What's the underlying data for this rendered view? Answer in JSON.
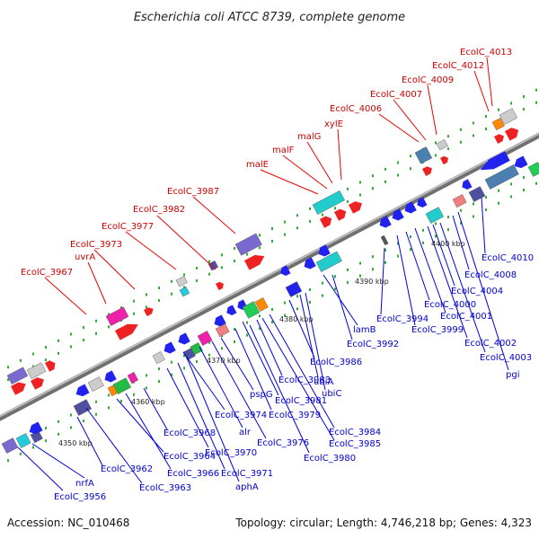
{
  "title": "Escherichia coli ATCC 8739, complete genome",
  "accession": "Accession: NC_010468",
  "summary": "Topology: circular; Length: 4,746,218 bp; Genes: 4,323",
  "colors": {
    "forward_label": "#cc0000",
    "reverse_label": "#0000cc",
    "backbone": "#888888",
    "dots": "#22aa22"
  },
  "ticks": [
    "4350 kbp",
    "4360 kbp",
    "4370 kbp",
    "4380 kbp",
    "4390 kbp",
    "4400 kbp"
  ],
  "forward_labels": [
    "EcolC_3967",
    "uvrA",
    "EcolC_3973",
    "EcolC_3977",
    "EcolC_3982",
    "EcolC_3987",
    "malE",
    "malF",
    "malG",
    "xylE",
    "EcolC_4006",
    "EcolC_4007",
    "EcolC_4009",
    "EcolC_4012",
    "EcolC_4013"
  ],
  "reverse_labels": [
    "EcolC_3956",
    "nrfA",
    "EcolC_3962",
    "EcolC_3963",
    "EcolC_3964",
    "EcolC_3966",
    "EcolC_3968",
    "EcolC_3970",
    "EcolC_3971",
    "aphA",
    "EcolC_3974",
    "alr",
    "EcolC_3976",
    "pspG",
    "EcolC_3979",
    "EcolC_3981",
    "EcolC_3983",
    "EcolC_3980",
    "EcolC_3984",
    "EcolC_3985",
    "EcolC_3986",
    "ubiA",
    "ubiC",
    "lamB",
    "EcolC_3992",
    "EcolC_3994",
    "EcolC_3999",
    "EcolC_4000",
    "EcolC_4001",
    "EcolC_4002",
    "EcolC_4003",
    "pgi",
    "EcolC_4004",
    "EcolC_4008",
    "EcolC_4010"
  ]
}
